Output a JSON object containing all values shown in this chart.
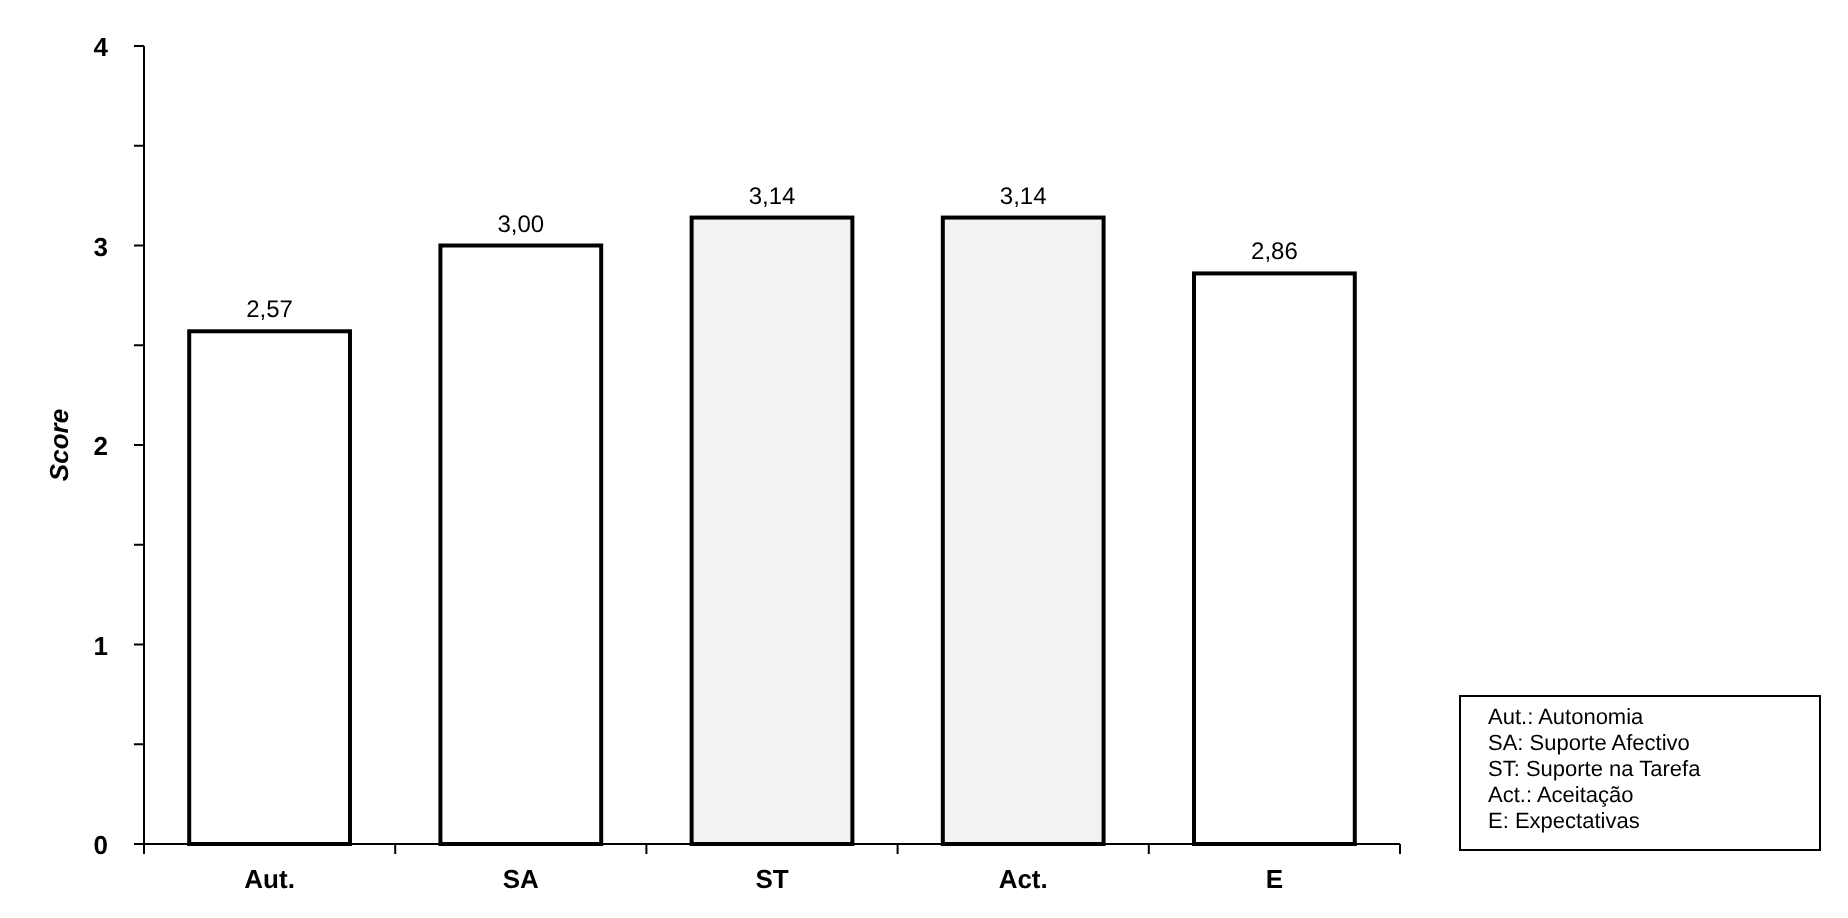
{
  "chart_data": {
    "type": "bar",
    "ylabel": "Score",
    "categories": [
      "Aut.",
      "SA",
      "ST",
      "Act.",
      "E"
    ],
    "values": [
      2.57,
      3.0,
      3.14,
      3.14,
      2.86
    ],
    "value_labels": [
      "2,57",
      "3,00",
      "3,14",
      "3,14",
      "2,86"
    ],
    "colors": [
      "#ffffff",
      "#ffffff",
      "#f2f2f2",
      "#f2f2f2",
      "#ffffff"
    ],
    "ylim": [
      0,
      4
    ],
    "yticks": [
      0,
      {
        "value": 0.5,
        "label": null
      },
      1,
      {
        "value": 1.5,
        "label": null
      },
      2,
      {
        "value": 2.5,
        "label": null
      },
      3,
      {
        "value": 3.5,
        "label": null
      },
      4
    ],
    "grid": false,
    "annotations": [
      "Aut.: Autonomia",
      "SA: Suporte Afectivo",
      "ST: Suporte na Tarefa",
      "Act.: Aceitação",
      "E: Expectativas"
    ]
  }
}
